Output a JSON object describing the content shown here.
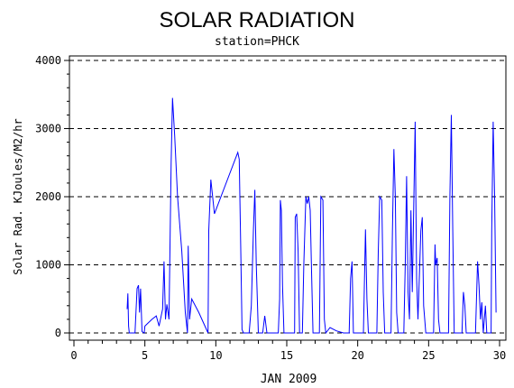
{
  "chart_data": {
    "type": "line",
    "title": "SOLAR RADIATION",
    "subtitle": "station=PHCK",
    "xlabel": "JAN 2009",
    "ylabel": "Solar Rad. KJoules/M2/hr",
    "xlim": [
      0,
      30.2
    ],
    "ylim": [
      0,
      4000
    ],
    "x_ticks": [
      0,
      5,
      10,
      15,
      20,
      25,
      30
    ],
    "y_ticks": [
      0,
      1000,
      2000,
      3000,
      4000
    ],
    "grid": "horizontal-dashed",
    "line_color": "#0000ff",
    "series": [
      {
        "values": [
          [
            3.75,
            350
          ],
          [
            3.8,
            580
          ],
          [
            3.85,
            100
          ],
          [
            3.9,
            0
          ],
          [
            4.3,
            0
          ],
          [
            4.45,
            650
          ],
          [
            4.55,
            700
          ],
          [
            4.62,
            300
          ],
          [
            4.7,
            650
          ],
          [
            4.8,
            20
          ],
          [
            4.95,
            0
          ],
          [
            5.0,
            100
          ],
          [
            5.5,
            200
          ],
          [
            5.8,
            250
          ],
          [
            6.0,
            100
          ],
          [
            6.25,
            350
          ],
          [
            6.35,
            1050
          ],
          [
            6.45,
            200
          ],
          [
            6.55,
            420
          ],
          [
            6.7,
            200
          ],
          [
            6.85,
            2500
          ],
          [
            6.95,
            3450
          ],
          [
            7.1,
            2900
          ],
          [
            7.3,
            2000
          ],
          [
            7.6,
            1200
          ],
          [
            7.85,
            300
          ],
          [
            8.0,
            0
          ],
          [
            8.05,
            1280
          ],
          [
            8.15,
            200
          ],
          [
            8.3,
            500
          ],
          [
            8.8,
            300
          ],
          [
            9.45,
            0
          ],
          [
            9.5,
            1500
          ],
          [
            9.65,
            2250
          ],
          [
            9.8,
            1950
          ],
          [
            9.9,
            1750
          ],
          [
            11.55,
            2650
          ],
          [
            11.65,
            2550
          ],
          [
            11.75,
            1300
          ],
          [
            11.85,
            50
          ],
          [
            11.95,
            0
          ],
          [
            12.35,
            0
          ],
          [
            12.5,
            400
          ],
          [
            12.65,
            1500
          ],
          [
            12.75,
            2100
          ],
          [
            12.85,
            1000
          ],
          [
            13.0,
            0
          ],
          [
            13.3,
            0
          ],
          [
            13.45,
            250
          ],
          [
            13.6,
            0
          ],
          [
            14.4,
            0
          ],
          [
            14.5,
            500
          ],
          [
            14.55,
            1950
          ],
          [
            14.62,
            1800
          ],
          [
            14.7,
            700
          ],
          [
            14.8,
            0
          ],
          [
            15.55,
            0
          ],
          [
            15.6,
            1700
          ],
          [
            15.7,
            1750
          ],
          [
            15.8,
            1200
          ],
          [
            15.9,
            0
          ],
          [
            16.1,
            0
          ],
          [
            16.2,
            1000
          ],
          [
            16.35,
            2000
          ],
          [
            16.45,
            1900
          ],
          [
            16.55,
            2000
          ],
          [
            16.65,
            1800
          ],
          [
            16.75,
            900
          ],
          [
            16.85,
            0
          ],
          [
            17.3,
            0
          ],
          [
            17.4,
            2000
          ],
          [
            17.55,
            1950
          ],
          [
            17.65,
            200
          ],
          [
            17.75,
            0
          ],
          [
            18.05,
            80
          ],
          [
            18.5,
            30
          ],
          [
            19.0,
            0
          ],
          [
            19.4,
            0
          ],
          [
            19.5,
            800
          ],
          [
            19.6,
            1050
          ],
          [
            19.7,
            0
          ],
          [
            20.4,
            0
          ],
          [
            20.55,
            1520
          ],
          [
            20.65,
            500
          ],
          [
            20.75,
            0
          ],
          [
            21.35,
            0
          ],
          [
            21.45,
            1200
          ],
          [
            21.55,
            2000
          ],
          [
            21.7,
            1950
          ],
          [
            21.8,
            600
          ],
          [
            21.9,
            0
          ],
          [
            22.35,
            0
          ],
          [
            22.45,
            1500
          ],
          [
            22.55,
            2700
          ],
          [
            22.65,
            2000
          ],
          [
            22.75,
            300
          ],
          [
            22.85,
            0
          ],
          [
            23.25,
            0
          ],
          [
            23.35,
            1000
          ],
          [
            23.45,
            2300
          ],
          [
            23.55,
            600
          ],
          [
            23.65,
            200
          ],
          [
            23.75,
            1800
          ],
          [
            23.85,
            600
          ],
          [
            23.95,
            1850
          ],
          [
            24.05,
            3100
          ],
          [
            24.15,
            800
          ],
          [
            24.25,
            200
          ],
          [
            24.45,
            1500
          ],
          [
            24.55,
            1700
          ],
          [
            24.65,
            400
          ],
          [
            24.8,
            0
          ],
          [
            25.35,
            0
          ],
          [
            25.45,
            1300
          ],
          [
            25.5,
            1000
          ],
          [
            25.6,
            1100
          ],
          [
            25.7,
            200
          ],
          [
            25.8,
            0
          ],
          [
            26.4,
            0
          ],
          [
            26.5,
            2000
          ],
          [
            26.6,
            3200
          ],
          [
            26.7,
            1500
          ],
          [
            26.8,
            0
          ],
          [
            27.35,
            0
          ],
          [
            27.45,
            600
          ],
          [
            27.55,
            400
          ],
          [
            27.65,
            0
          ],
          [
            28.3,
            0
          ],
          [
            28.45,
            1050
          ],
          [
            28.55,
            700
          ],
          [
            28.65,
            200
          ],
          [
            28.75,
            450
          ],
          [
            28.85,
            0
          ],
          [
            29.0,
            400
          ],
          [
            29.1,
            0
          ],
          [
            29.4,
            0
          ],
          [
            29.45,
            1500
          ],
          [
            29.55,
            3100
          ],
          [
            29.65,
            2000
          ],
          [
            29.75,
            300
          ]
        ]
      }
    ]
  }
}
